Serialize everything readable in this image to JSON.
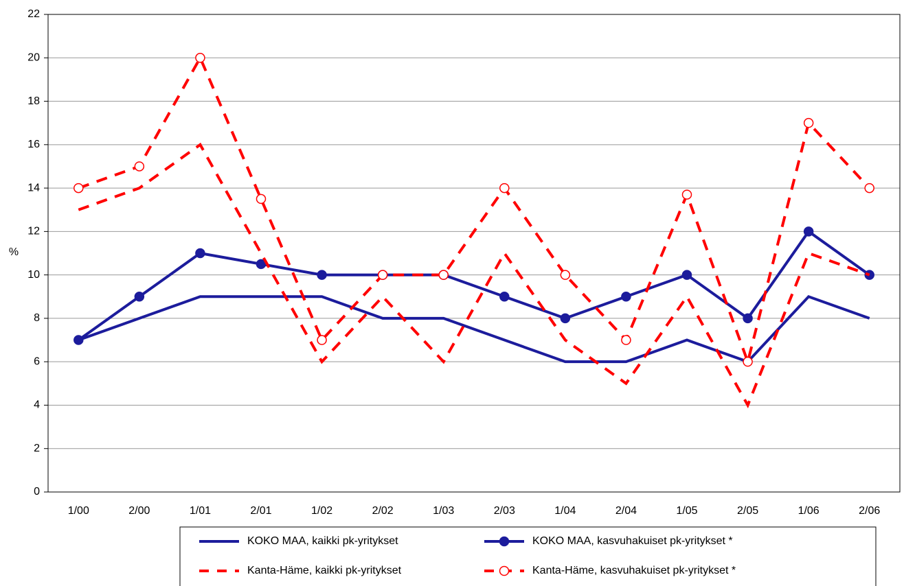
{
  "chart_data": {
    "type": "line",
    "y_label": "%",
    "categories": [
      "1/00",
      "2/00",
      "1/01",
      "2/01",
      "1/02",
      "2/02",
      "1/03",
      "2/03",
      "1/04",
      "2/04",
      "1/05",
      "2/05",
      "1/06",
      "2/06"
    ],
    "ylim": [
      0,
      22
    ],
    "yticks": [
      0,
      2,
      4,
      6,
      8,
      10,
      12,
      14,
      16,
      18,
      20,
      22
    ],
    "grid": true,
    "series": [
      {
        "name": "KOKO MAA, kaikki pk-yritykset",
        "color": "#1c1c9c",
        "dash": false,
        "marker": "none",
        "values": [
          7,
          8,
          9,
          9,
          9,
          8,
          8,
          7,
          6,
          6,
          7,
          6,
          9,
          8
        ]
      },
      {
        "name": "KOKO MAA, kasvuhakuiset pk-yritykset *",
        "color": "#1c1c9c",
        "dash": false,
        "marker": "filled",
        "values": [
          7,
          9,
          11,
          10.5,
          10,
          10,
          10,
          9,
          8,
          9,
          10,
          8,
          12,
          10
        ]
      },
      {
        "name": "Kanta-Häme, kaikki pk-yritykset",
        "color": "#ff0000",
        "dash": true,
        "marker": "none",
        "values": [
          13,
          14,
          16,
          11,
          6,
          9,
          6,
          11,
          7,
          5,
          9,
          4,
          11,
          10
        ]
      },
      {
        "name": "Kanta-Häme, kasvuhakuiset pk-yritykset *",
        "color": "#ff0000",
        "dash": true,
        "marker": "open",
        "values": [
          14,
          15,
          20,
          13.5,
          7,
          10,
          10,
          14,
          10,
          7,
          13.7,
          6,
          17,
          14
        ]
      }
    ]
  }
}
